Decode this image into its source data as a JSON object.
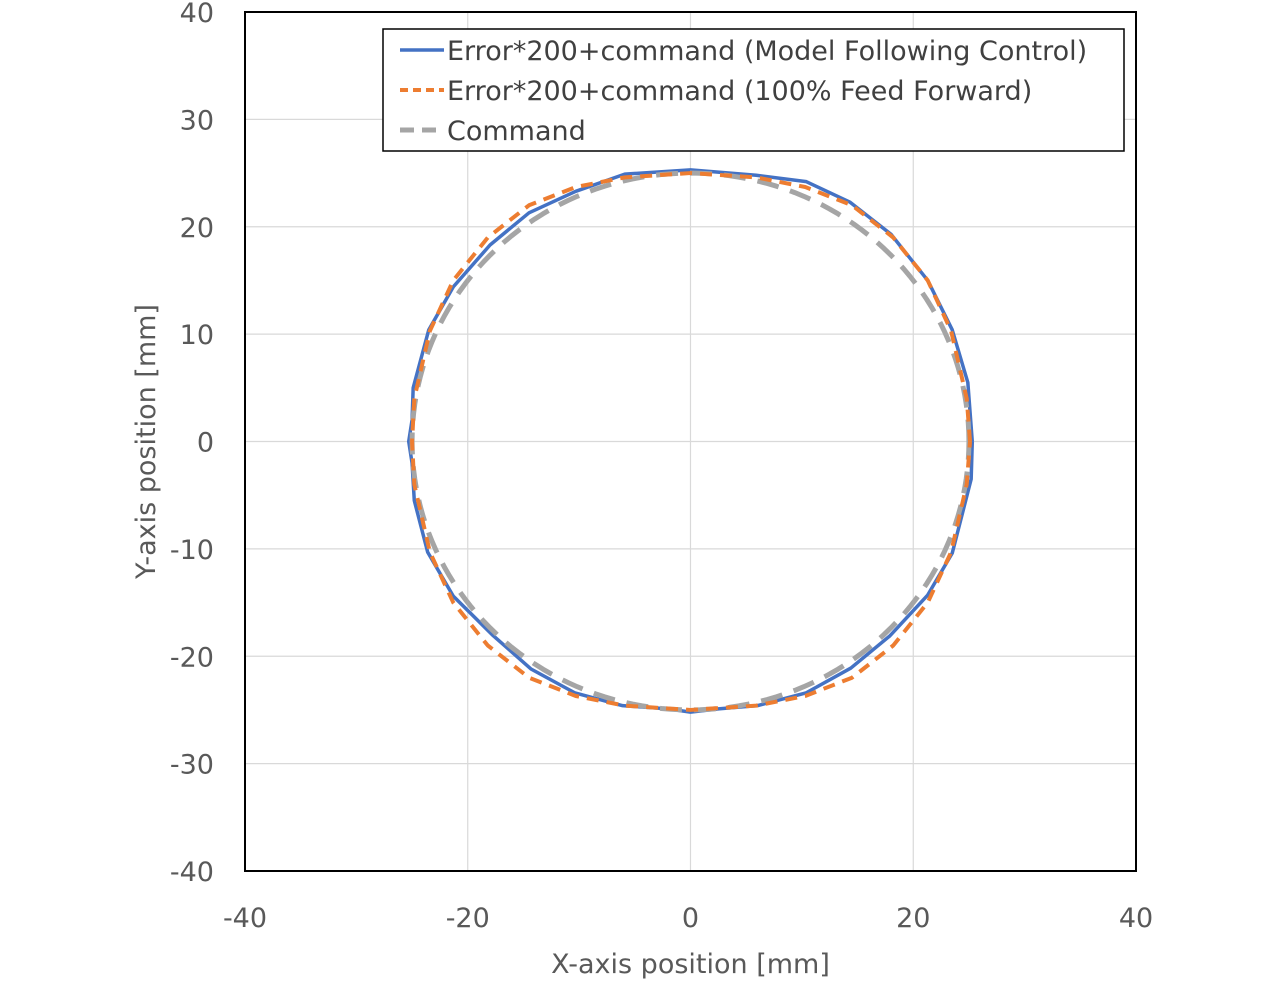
{
  "chart_data": {
    "type": "line",
    "title": "",
    "xlabel": "X-axis position [mm]",
    "ylabel": "Y-axis  position [mm]",
    "xlim": [
      -40,
      40
    ],
    "ylim": [
      -40,
      40
    ],
    "xticks": [
      -40,
      -20,
      0,
      20,
      40
    ],
    "yticks": [
      -40,
      -30,
      -20,
      -10,
      0,
      10,
      20,
      30,
      40
    ],
    "grid": true,
    "legend_position": "top-right",
    "series": [
      {
        "name": "Error*200+command (Model Following Control)",
        "color": "#4472c4",
        "style": "solid",
        "x": [
          25.3,
          24.9,
          23.5,
          21.3,
          18.0,
          14.3,
          10.4,
          5.9,
          0.0,
          -5.9,
          -10.3,
          -14.5,
          -18.0,
          -21.3,
          -23.5,
          -24.9,
          -25.0,
          -25.3,
          -25.0,
          -24.8,
          -23.6,
          -21.3,
          -17.8,
          -14.3,
          -10.4,
          -6.1,
          -2.0,
          0.0,
          2.5,
          6.0,
          10.4,
          14.4,
          17.9,
          21.3,
          23.5,
          25.2,
          25.3
        ],
        "y": [
          0.0,
          5.5,
          10.4,
          15.0,
          19.3,
          22.3,
          24.2,
          24.8,
          25.3,
          24.9,
          23.3,
          21.3,
          18.3,
          14.4,
          10.4,
          5.0,
          2.0,
          0.0,
          -2.0,
          -5.5,
          -10.3,
          -14.4,
          -18.0,
          -21.2,
          -23.4,
          -24.6,
          -24.9,
          -25.2,
          -24.9,
          -24.6,
          -23.4,
          -21.1,
          -18.1,
          -14.3,
          -10.4,
          -3.5,
          0.0
        ]
      },
      {
        "name": "Error*200+command  (100% Feed Forward)",
        "color": "#ed7d31",
        "style": "dashed",
        "x": [
          25.1,
          24.8,
          23.4,
          21.3,
          18.2,
          14.5,
          10.3,
          5.9,
          0.0,
          -5.9,
          -10.3,
          -14.5,
          -18.2,
          -21.3,
          -23.4,
          -24.8,
          -25.0,
          -24.8,
          -23.4,
          -21.3,
          -18.2,
          -14.5,
          -10.3,
          -5.9,
          0.0,
          5.9,
          10.3,
          14.5,
          18.2,
          21.3,
          23.4,
          24.8,
          25.1
        ],
        "y": [
          0.0,
          4.0,
          10.3,
          15.0,
          19.0,
          22.0,
          23.7,
          24.6,
          25.0,
          24.6,
          23.7,
          22.0,
          19.0,
          15.0,
          10.3,
          4.0,
          0.0,
          -4.0,
          -10.3,
          -15.0,
          -19.0,
          -22.0,
          -23.7,
          -24.6,
          -25.0,
          -24.6,
          -23.7,
          -22.0,
          -19.0,
          -15.0,
          -10.3,
          -4.0,
          0.0
        ]
      },
      {
        "name": "Command",
        "color": "#a5a5a5",
        "style": "dashed",
        "shape": "circle",
        "center": [
          0,
          0
        ],
        "radius": 25
      }
    ]
  }
}
